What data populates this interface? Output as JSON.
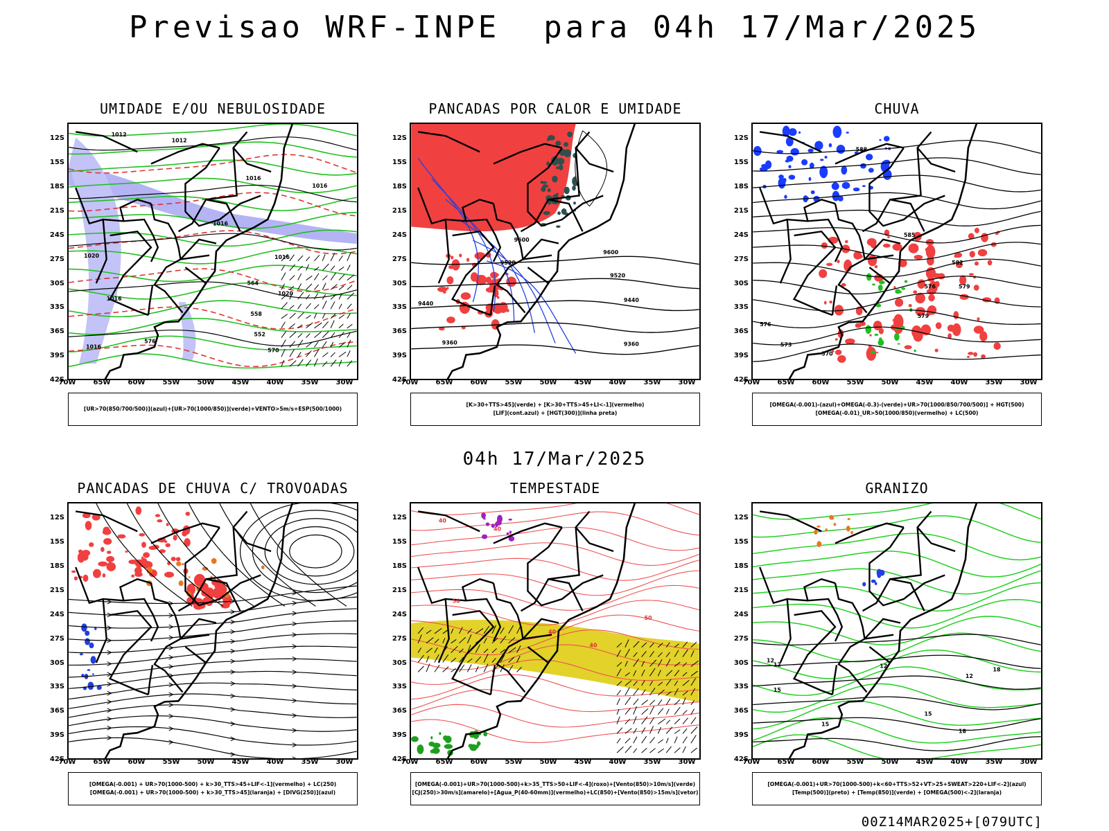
{
  "title": "Previsao WRF-INPE  para 04h 17/Mar/2025",
  "subtitle": "04h 17/Mar/2025",
  "footer": "00Z14MAR2025+[079UTC]",
  "axes": {
    "lat_labels": [
      "12S",
      "15S",
      "18S",
      "21S",
      "24S",
      "27S",
      "30S",
      "33S",
      "36S",
      "39S",
      "42S"
    ],
    "lon_labels": [
      "70W",
      "65W",
      "60W",
      "55W",
      "50W",
      "45W",
      "40W",
      "35W",
      "30W"
    ]
  },
  "panels": [
    {
      "title": "UMIDADE E/OU NEBULOSIDADE",
      "legend": [
        "[UR>70(850/700/500)](azul)+[UR>70(1000/850)](verde)+VENTO>5m/s+ESP(500/1000)"
      ],
      "contour_labels": [
        "1012",
        "1012",
        "1016",
        "1016",
        "1016",
        "1020",
        "1016",
        "1016",
        "1020",
        "1016",
        "576",
        "570",
        "564",
        "558",
        "552"
      ]
    },
    {
      "title": "PANCADAS POR CALOR E UMIDADE",
      "legend": [
        "[K>30+TTS>45](verde) + [K>30+TTS>45+LI<-1](vermelho)",
        "[LIF](cont.azul) + [HGT(300)](linha preta)"
      ],
      "contour_labels": [
        "9600",
        "9600",
        "9520",
        "9520",
        "9440",
        "9440",
        "9360",
        "9360"
      ]
    },
    {
      "title": "CHUVA",
      "legend": [
        "[OMEGA(-0.001)-(azul)+OMEGA(-0.3)-(verde)+UR>70(1000/850/700/500)] + HGT(500)",
        "[OMEGA(-0.01)_UR>50(1000/850)(vermelho) + LC(500)"
      ],
      "contour_labels": [
        "588",
        "585",
        "582",
        "579",
        "576",
        "573",
        "570",
        "576",
        "579"
      ]
    },
    {
      "title": "PANCADAS DE CHUVA C/ TROVOADAS",
      "legend": [
        "[OMEGA(-0.001) + UR>70(1000-500) + k>30_TTS>45+LIF<-1](vermelho) + LC(250)",
        "[OMEGA(-0.001) + UR>70(1000-500) + k>30_TTS>45](laranja) + [DIVG(250)](azul)"
      ],
      "contour_labels": []
    },
    {
      "title": "TEMPESTADE",
      "legend": [
        "[OMEGA(-0.001)+UR>70(1000-500)+k>35_TTS>50+LIF<-4](roxo)+[Vento(850)>10m/s](verde)",
        "[CJ(250)>30m/s](amarelo)+[Agua_P(40-60mm)](vermelho)+LC(850)+[Vento(850)>15m/s](vetor)"
      ],
      "contour_labels": [
        "40",
        "40",
        "40",
        "40",
        "50",
        "50"
      ]
    },
    {
      "title": "GRANIZO",
      "legend": [
        "[OMEGA(-0.001)+UR>70(1000-500)+k<60+TTS>52+VT>25+SWEAT>220+LIF<-2](azul)",
        "[Temp(500)](preto) + [Temp(850)](verde) + [OMEGA(500)<-2](laranja)"
      ],
      "contour_labels": [
        "12",
        "12",
        "12",
        "12",
        "15",
        "15",
        "15",
        "18",
        "18"
      ]
    }
  ]
}
